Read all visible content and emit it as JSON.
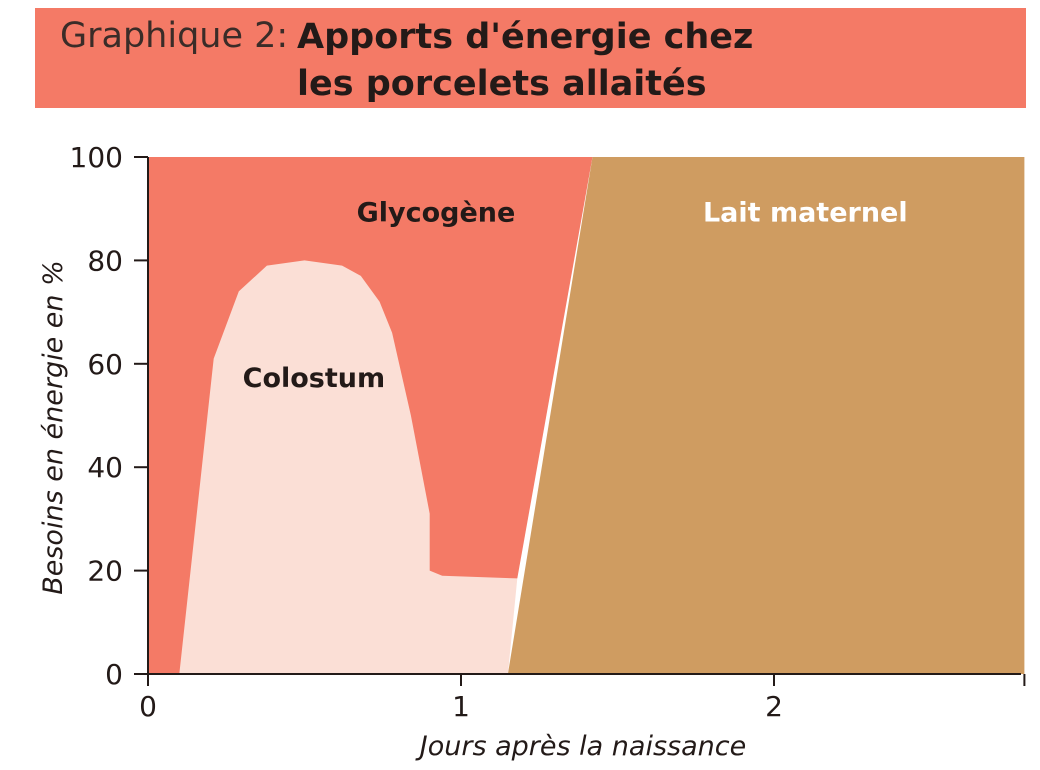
{
  "header": {
    "prefix": "Graphique 2:",
    "title_line1": "Apports d'énergie chez",
    "title_line2": "les porcelets allaités"
  },
  "colors": {
    "banner": "#f47a66",
    "glycogene": "#f47a66",
    "colostum": "#fbdfd6",
    "lait": "#cf9c61",
    "axis": "#231a18"
  },
  "chart_data": {
    "type": "area",
    "title": "Apports d'énergie chez les porcelets allaités",
    "xlabel": "Jours après la naissance",
    "ylabel": "Besoins en énergie en %",
    "xlim": [
      0,
      2.8
    ],
    "ylim": [
      0,
      100
    ],
    "x_ticks": [
      0,
      1,
      2
    ],
    "y_ticks": [
      0,
      20,
      40,
      60,
      80,
      100
    ],
    "grid": false,
    "series": [
      {
        "name": "Glycogène",
        "color": "#f47a66",
        "points": [
          [
            0,
            0
          ],
          [
            0,
            100
          ],
          [
            1.42,
            100
          ],
          [
            1.18,
            18.5
          ],
          [
            0.1,
            0
          ]
        ]
      },
      {
        "name": "Colostum",
        "color": "#fbdfd6",
        "points": [
          [
            0.1,
            0
          ],
          [
            0.21,
            61
          ],
          [
            0.29,
            74
          ],
          [
            0.38,
            79
          ],
          [
            0.5,
            80
          ],
          [
            0.62,
            79
          ],
          [
            0.68,
            77
          ],
          [
            0.74,
            72
          ],
          [
            0.78,
            66
          ],
          [
            0.84,
            50
          ],
          [
            0.9,
            31
          ],
          [
            0.9,
            20
          ],
          [
            0.94,
            19
          ],
          [
            1.18,
            18.5
          ],
          [
            1.15,
            0
          ]
        ]
      },
      {
        "name": "Lait maternel",
        "color": "#cf9c61",
        "points": [
          [
            1.15,
            0
          ],
          [
            1.42,
            100
          ],
          [
            2.8,
            100
          ],
          [
            2.8,
            0
          ]
        ]
      }
    ],
    "annotations": [
      {
        "text": "Glycogène",
        "x": 0.92,
        "y": 89,
        "color": "#231a18"
      },
      {
        "text": "Colostum",
        "x": 0.53,
        "y": 57,
        "color": "#231a18"
      },
      {
        "text": "Lait maternel",
        "x": 2.1,
        "y": 89,
        "color": "#ffffff"
      }
    ]
  }
}
